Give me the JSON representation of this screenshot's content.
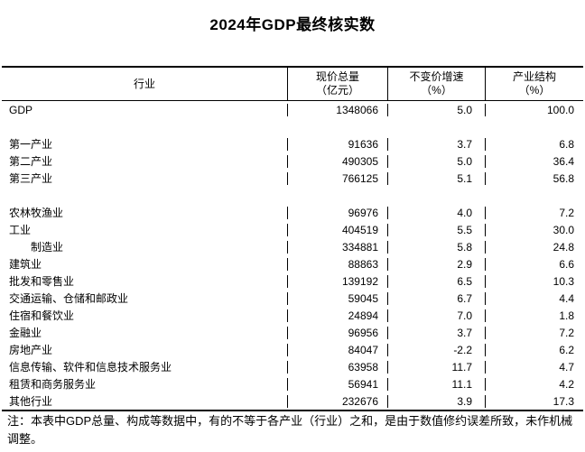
{
  "title": "2024年GDP最终核实数",
  "table": {
    "headers": [
      {
        "line1": "行业",
        "line2": ""
      },
      {
        "line1": "现价总量",
        "line2": "（亿元）"
      },
      {
        "line1": "不变价增速",
        "line2": "（%）"
      },
      {
        "line1": "产业结构",
        "line2": "（%）"
      }
    ],
    "rows": [
      {
        "name": "GDP",
        "value": "1348066",
        "growth": "5.0",
        "share": "100.0"
      },
      {
        "blank": true
      },
      {
        "name": "第一产业",
        "value": "91636",
        "growth": "3.7",
        "share": "6.8"
      },
      {
        "name": "第二产业",
        "value": "490305",
        "growth": "5.0",
        "share": "36.4"
      },
      {
        "name": "第三产业",
        "value": "766125",
        "growth": "5.1",
        "share": "56.8"
      },
      {
        "blank": true
      },
      {
        "name": "农林牧渔业",
        "value": "96976",
        "growth": "4.0",
        "share": "7.2"
      },
      {
        "name": "工业",
        "value": "404519",
        "growth": "5.5",
        "share": "30.0"
      },
      {
        "name": "制造业",
        "value": "334881",
        "growth": "5.8",
        "share": "24.8",
        "indent": true
      },
      {
        "name": "建筑业",
        "value": "88863",
        "growth": "2.9",
        "share": "6.6"
      },
      {
        "name": "批发和零售业",
        "value": "139192",
        "growth": "6.5",
        "share": "10.3"
      },
      {
        "name": "交通运输、仓储和邮政业",
        "value": "59045",
        "growth": "6.7",
        "share": "4.4"
      },
      {
        "name": "住宿和餐饮业",
        "value": "24894",
        "growth": "7.0",
        "share": "1.8"
      },
      {
        "name": "金融业",
        "value": "96956",
        "growth": "3.7",
        "share": "7.2"
      },
      {
        "name": "房地产业",
        "value": "84047",
        "growth": "-2.2",
        "share": "6.2"
      },
      {
        "name": "信息传输、软件和信息技术服务业",
        "value": "63958",
        "growth": "11.7",
        "share": "4.7"
      },
      {
        "name": "租赁和商务服务业",
        "value": "56941",
        "growth": "11.1",
        "share": "4.2"
      },
      {
        "name": "其他行业",
        "value": "232676",
        "growth": "3.9",
        "share": "17.3"
      }
    ]
  },
  "note": "注：本表中GDP总量、构成等数据中，有的不等于各产业（行业）之和，是由于数值修约误差所致，未作机械调整。"
}
